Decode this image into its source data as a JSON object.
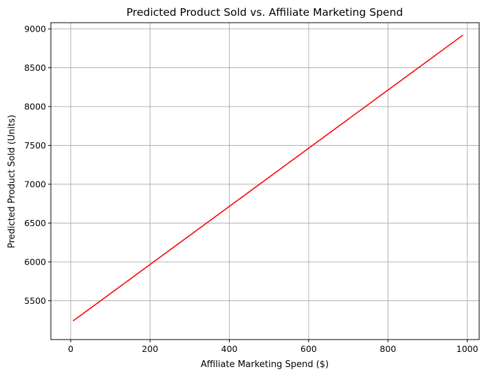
{
  "chart_data": {
    "type": "line",
    "title": "Predicted Product Sold vs. Affiliate Marketing Spend",
    "xlabel": "Affiliate Marketing Spend ($)",
    "ylabel": "Predicted Product Sold (Units)",
    "xlim": [
      -50,
      1030
    ],
    "ylim": [
      5000,
      9080
    ],
    "xticks": [
      0,
      200,
      400,
      600,
      800,
      1000
    ],
    "yticks": [
      5500,
      6000,
      6500,
      7000,
      7500,
      8000,
      8500,
      9000
    ],
    "grid": true,
    "legend": "none",
    "series": [
      {
        "color": "#ff0000",
        "x": [
          6,
          989
        ],
        "y": [
          5240,
          8920
        ]
      }
    ]
  }
}
